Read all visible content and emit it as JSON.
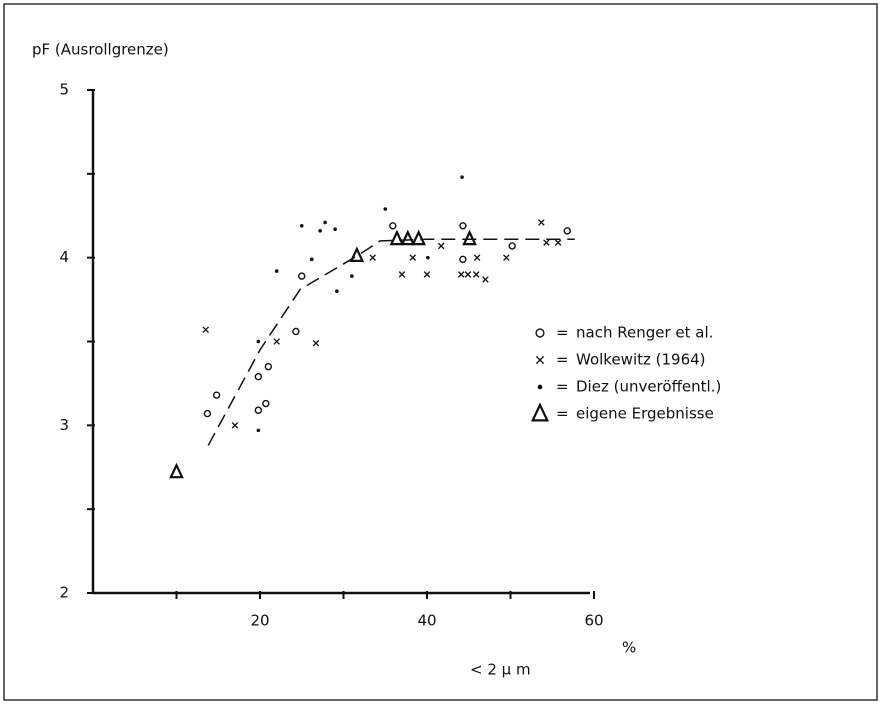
{
  "chart_data": {
    "type": "scatter",
    "title": "pF (Ausrollgrenze)",
    "x_label": "< 2 μ m",
    "x_unit": "%",
    "xlim": [
      0,
      60
    ],
    "xticks": [
      20,
      40,
      60
    ],
    "xminor": [
      10,
      30,
      50
    ],
    "ylim": [
      2,
      5
    ],
    "yticks": [
      2,
      3,
      4,
      5
    ],
    "yminor": [
      2.5,
      3.5,
      4.5
    ],
    "legend": "right",
    "series": [
      {
        "name": "nach Renger et al.",
        "marker": "circle",
        "color": "#111",
        "x": [
          13.7,
          14.8,
          19.8,
          19.8,
          21.0,
          20.7,
          24.3,
          25.0,
          35.9,
          44.3,
          44.3,
          50.2,
          56.8
        ],
        "y": [
          3.07,
          3.18,
          3.29,
          3.09,
          3.35,
          3.13,
          3.56,
          3.89,
          4.19,
          4.19,
          3.99,
          4.07,
          4.16
        ]
      },
      {
        "name": "Wolkewitz (1964)",
        "marker": "x",
        "color": "#111",
        "x": [
          13.5,
          17,
          22,
          26.7,
          33.5,
          37,
          38.3,
          40,
          41.7,
          44.1,
          44.9,
          45.9,
          47,
          46,
          49.5,
          53.7,
          54.3,
          55.7
        ],
        "y": [
          3.57,
          3.0,
          3.5,
          3.49,
          4.0,
          3.9,
          4.0,
          3.9,
          4.07,
          3.9,
          3.9,
          3.9,
          3.87,
          4.0,
          4.0,
          4.21,
          4.09,
          4.09
        ]
      },
      {
        "name": "Diez (unveröffentl.)",
        "marker": "dot",
        "color": "#111",
        "x": [
          19.8,
          19.8,
          22,
          25,
          26.2,
          27.2,
          27.8,
          29,
          29.2,
          31,
          35,
          40.1,
          44.2
        ],
        "y": [
          3.5,
          2.97,
          3.92,
          4.19,
          3.99,
          4.16,
          4.21,
          4.17,
          3.8,
          3.89,
          4.29,
          4.0,
          4.48
        ]
      },
      {
        "name": "eigene Ergebnisse",
        "marker": "triangle",
        "color": "#111",
        "x": [
          10,
          31.6,
          36.4,
          37.7,
          39.0,
          45.1
        ],
        "y": [
          2.72,
          4.01,
          4.11,
          4.11,
          4.11,
          4.11
        ]
      }
    ],
    "curve": {
      "x": [
        13.8,
        20,
        24.8,
        31.6,
        34.4,
        40,
        57.7
      ],
      "y": [
        2.88,
        3.45,
        3.81,
        4.01,
        4.1,
        4.11,
        4.11
      ],
      "dashed": true,
      "color": "#111"
    }
  }
}
